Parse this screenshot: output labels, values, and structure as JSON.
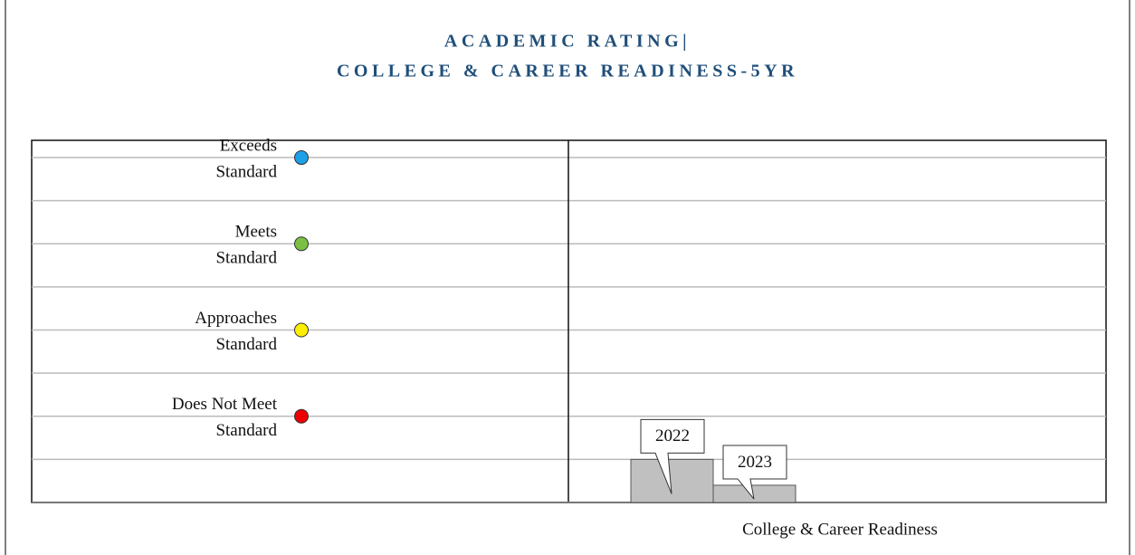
{
  "chart_data": {
    "type": "bar",
    "title": [
      "ACADEMIC RATING|",
      "COLLEGE & CAREER READINESS-5YR"
    ],
    "levels": [
      {
        "label": [
          "Exceeds",
          "Standard"
        ],
        "color": "#1ca0e8",
        "value": 8
      },
      {
        "label": [
          "Meets",
          "Standard"
        ],
        "color": "#7ac143",
        "value": 6
      },
      {
        "label": [
          "Approaches",
          "Standard"
        ],
        "color": "#ffee00",
        "value": 4
      },
      {
        "label": [
          "Does Not Meet",
          "Standard"
        ],
        "color": "#ee0000",
        "value": 2
      }
    ],
    "categories": [
      "2022",
      "2023"
    ],
    "values": [
      1,
      0.4
    ],
    "color": "#c0c0c0",
    "xlabel": "College & Career Readiness",
    "ylim": [
      0,
      8.4
    ],
    "yticks": [
      1,
      2,
      3,
      4,
      5,
      6,
      7,
      8
    ],
    "grid": true
  }
}
